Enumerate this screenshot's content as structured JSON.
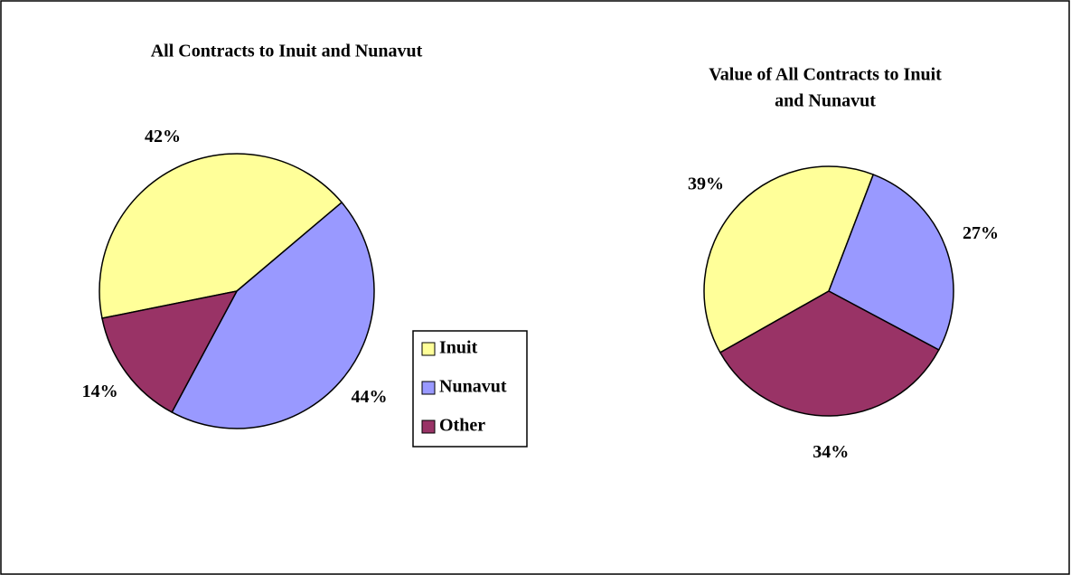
{
  "chart_data": [
    {
      "type": "pie",
      "title": "All Contracts to Inuit and Nunavut",
      "categories": [
        "Inuit",
        "Nunavut",
        "Other"
      ],
      "values": [
        42,
        44,
        14
      ],
      "value_labels": [
        "42%",
        "44%",
        "14%"
      ],
      "colors": [
        "#ffff99",
        "#9999ff",
        "#993366"
      ],
      "legend": "right"
    },
    {
      "type": "pie",
      "title": [
        "Value of All Contracts to Inuit",
        "and Nunavut"
      ],
      "categories": [
        "Inuit",
        "Nunavut",
        "Other"
      ],
      "values": [
        39,
        27,
        34
      ],
      "value_labels": [
        "39%",
        "27%",
        "34%"
      ],
      "colors": [
        "#ffff99",
        "#9999ff",
        "#993366"
      ]
    }
  ]
}
